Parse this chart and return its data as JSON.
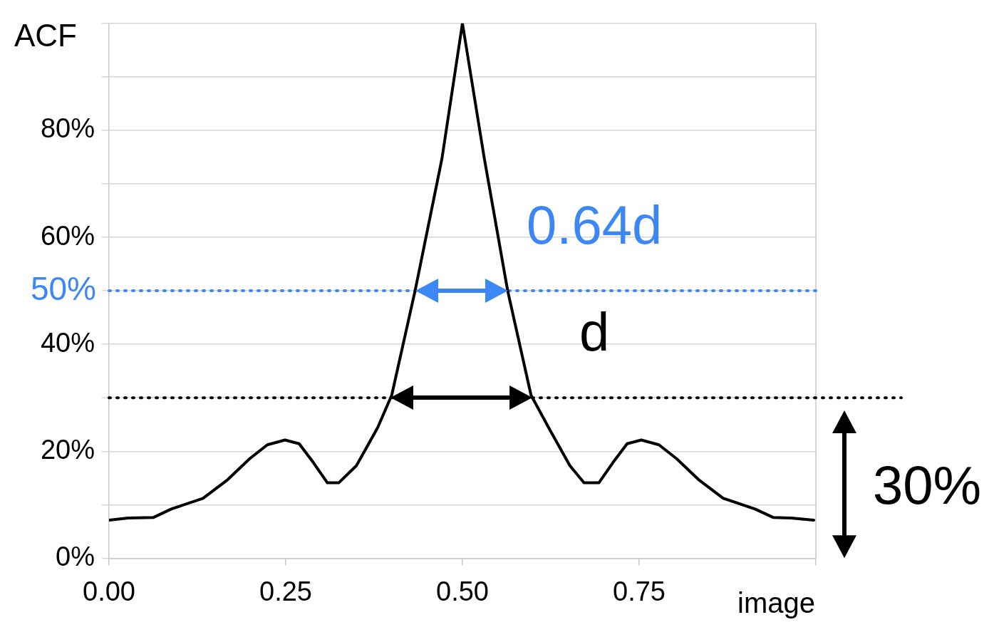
{
  "chart_data": {
    "type": "line",
    "ylabel": "ACF",
    "xlabel": "image",
    "series": [
      {
        "color": "#000000",
        "x": [
          0,
          0.027,
          0.0625,
          0.088,
          0.133,
          0.168,
          0.199,
          0.224,
          0.249,
          0.269,
          0.289,
          0.309,
          0.325,
          0.35,
          0.38,
          0.4,
          0.433,
          0.471,
          0.5,
          0.531,
          0.564,
          0.597,
          0.622,
          0.652,
          0.672,
          0.693,
          0.713,
          0.733,
          0.753,
          0.778,
          0.803,
          0.834,
          0.869,
          0.914,
          0.94,
          0.965,
          0.997
        ],
        "values": [
          7.1,
          7.5,
          7.6,
          9.2,
          11.2,
          14.7,
          18.6,
          21.2,
          22.1,
          21.4,
          17.9,
          14.1,
          14.1,
          17.3,
          24.4,
          30.5,
          50,
          74.7,
          100,
          74.7,
          50,
          30.5,
          24.4,
          17.3,
          14.1,
          14.1,
          17.9,
          21.4,
          22.1,
          21.2,
          18.6,
          14.7,
          11.2,
          9.2,
          7.6,
          7.5,
          7.1
        ]
      }
    ],
    "xlim": [
      0,
      1
    ],
    "xticks": [
      {
        "value": 0,
        "label": "0.00"
      },
      {
        "value": 0.25,
        "label": "0.25"
      },
      {
        "value": 0.5,
        "label": "0.50"
      },
      {
        "value": 0.75,
        "label": "0.75"
      },
      {
        "value": 1,
        "label": null
      }
    ],
    "ylim": [
      0,
      100
    ],
    "yticks": [
      {
        "value": 0,
        "label": "0%"
      },
      {
        "value": 10,
        "label": null
      },
      {
        "value": 20,
        "label": "20%"
      },
      {
        "value": 30,
        "label": null
      },
      {
        "value": 40,
        "label": "40%"
      },
      {
        "value": 50,
        "label": null
      },
      {
        "value": 60,
        "label": "60%"
      },
      {
        "value": 70,
        "label": null
      },
      {
        "value": 80,
        "label": "80%"
      },
      {
        "value": 90,
        "label": null
      },
      {
        "value": 100,
        "label": null
      }
    ],
    "grid": "y",
    "marker": "none",
    "line_style": "solid",
    "ref_lines": [
      {
        "axis": "y",
        "value": 50,
        "label": "50%",
        "color": "#3d87f5",
        "line_style": "dotted"
      },
      {
        "axis": "y",
        "value": 30,
        "label": null,
        "color": "#000000",
        "line_style": "dotted"
      }
    ],
    "annotations": [
      {
        "text": "0.64d",
        "x": 0.5,
        "y": 50
      },
      {
        "text": "d",
        "x": 0.5,
        "y": 30
      },
      "30%"
    ]
  }
}
